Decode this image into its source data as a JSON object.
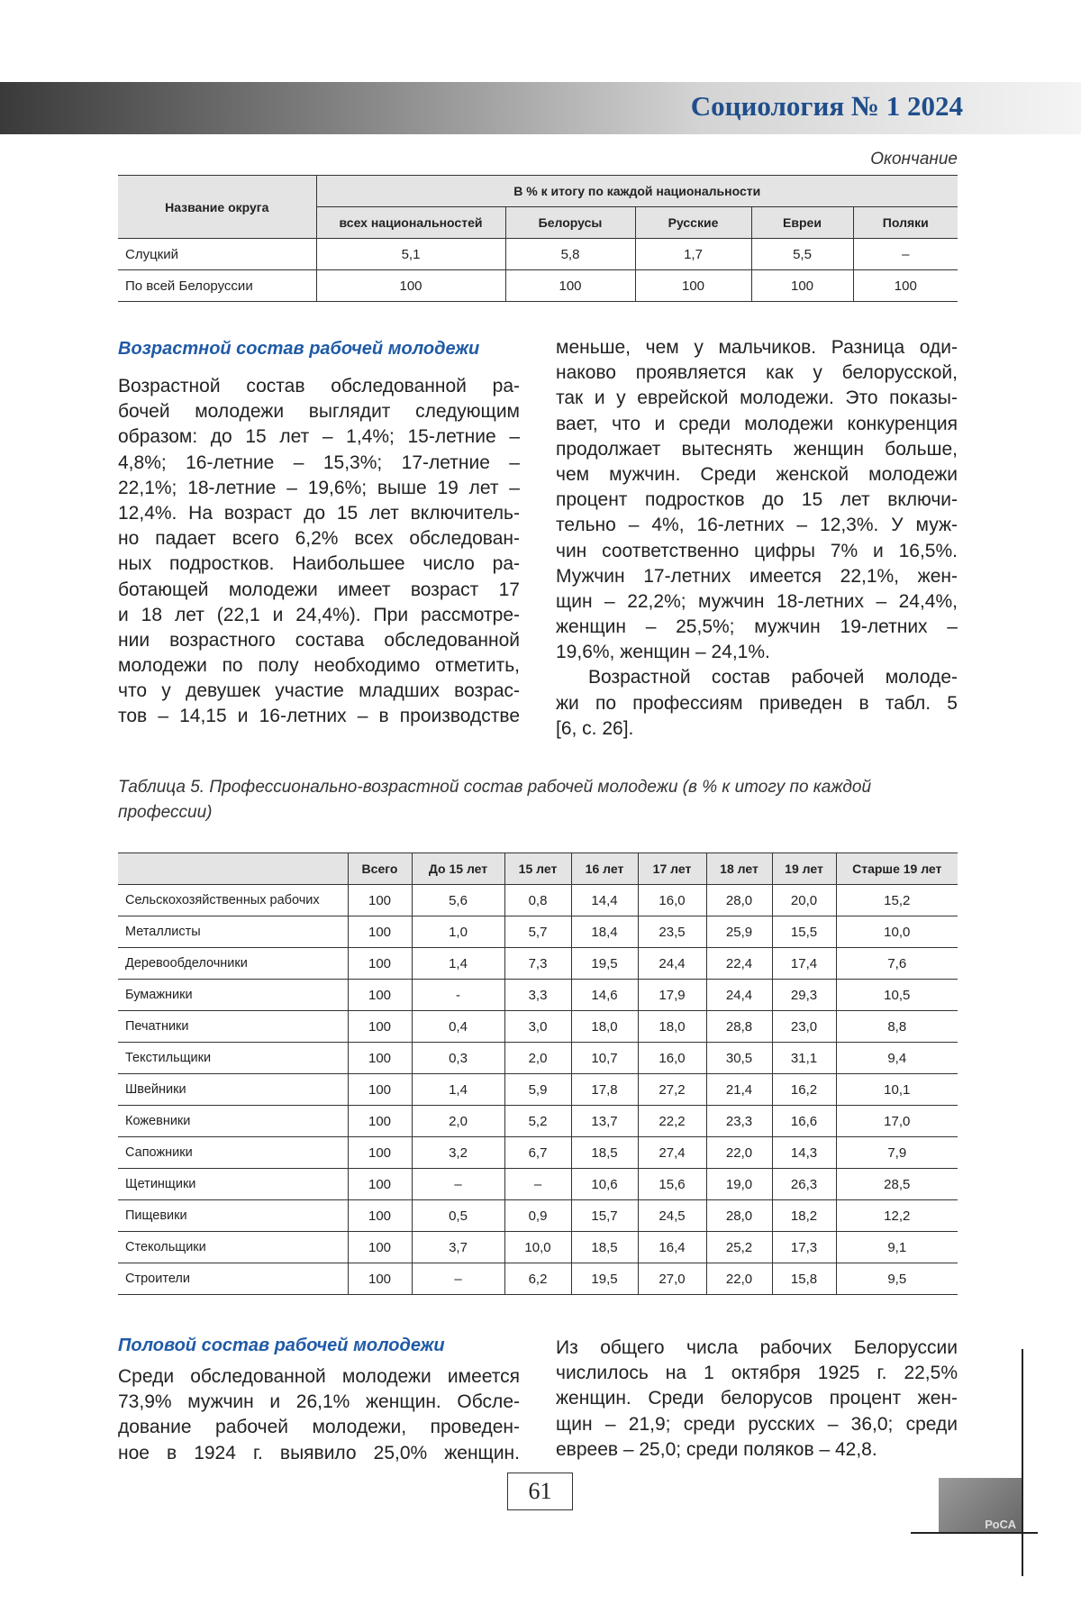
{
  "header": {
    "title": "Социология № 1 2024"
  },
  "table1": {
    "note": "Окончание",
    "head": {
      "name": "Название округа",
      "group": "В % к итогу по каждой национальности",
      "cols": [
        "всех национальностей",
        "Белорусы",
        "Русские",
        "Евреи",
        "Поляки"
      ]
    },
    "rows": [
      [
        "Слуцкий",
        "5,1",
        "5,8",
        "1,7",
        "5,5",
        "–"
      ],
      [
        "По всей Белоруссии",
        "100",
        "100",
        "100",
        "100",
        "100"
      ]
    ]
  },
  "section1": {
    "heading": "Возрастной состав рабочей молодежи",
    "left": [
      [
        "Возрастной состав обследованной ра-",
        "бочей молодежи выглядит следующим",
        "образом: до 15 лет – 1,4%; 15-летние –",
        "4,8%; 16-летние – 15,3%; 17-летние –",
        "22,1%; 18-летние – 19,6%; выше 19 лет –",
        "12,4%. На возраст до 15 лет включитель-",
        "но падает всего 6,2% всех обследован-",
        "ных подростков. Наибольшее число ра-",
        "ботающей молодежи имеет возраст 17",
        "и 18 лет (22,1 и 24,4%). При рассмотре-",
        "нии возрастного состава обследованной",
        "молодежи по полу необходимо отметить,",
        "что у девушек участие младших возрас-",
        "тов – 14,15 и 16-летних – в производстве"
      ]
    ],
    "right": [
      [
        "меньше, чем у мальчиков. Разница оди-",
        "наково проявляется как у белорусской,",
        "так и у еврейской молодежи. Это показы-",
        "вает, что и среди молодежи конкуренция",
        "продолжает вытеснять женщин больше,",
        "чем мужчин. Среди женской молодежи",
        "процент подростков до 15 лет включи-",
        "тельно – 4%, 16-летних – 12,3%. У муж-",
        "чин соответственно цифры 7% и 16,5%.",
        "Мужчин 17-летних имеется 22,1%, жен-",
        "щин – 22,2%; мужчин 18-летних – 24,4%,",
        "женщин – 25,5%; мужчин 19-летних –",
        "19,6%, женщин – 24,1%."
      ],
      [
        "Возрастной состав рабочей молоде-",
        "жи по профессиям приведен в табл. 5",
        "[6, с. 26]."
      ]
    ]
  },
  "table5": {
    "caption": "Таблица 5. Профессионально-возрастной состав рабочей молодежи (в % к итогу по каждой профессии)",
    "head": [
      "Всего",
      "До 15 лет",
      "15 лет",
      "16 лет",
      "17 лет",
      "18 лет",
      "19 лет",
      "Старше 19 лет"
    ],
    "rows": [
      [
        "Сельскохозяйственных рабочих",
        "100",
        "5,6",
        "0,8",
        "14,4",
        "16,0",
        "28,0",
        "20,0",
        "15,2"
      ],
      [
        "Металлисты",
        "100",
        "1,0",
        "5,7",
        "18,4",
        "23,5",
        "25,9",
        "15,5",
        "10,0"
      ],
      [
        "Деревообделочники",
        "100",
        "1,4",
        "7,3",
        "19,5",
        "24,4",
        "22,4",
        "17,4",
        "7,6"
      ],
      [
        "Бумажники",
        "100",
        "-",
        "3,3",
        "14,6",
        "17,9",
        "24,4",
        "29,3",
        "10,5"
      ],
      [
        "Печатники",
        "100",
        "0,4",
        "3,0",
        "18,0",
        "18,0",
        "28,8",
        "23,0",
        "8,8"
      ],
      [
        "Текстильщики",
        "100",
        "0,3",
        "2,0",
        "10,7",
        "16,0",
        "30,5",
        "31,1",
        "9,4"
      ],
      [
        "Швейники",
        "100",
        "1,4",
        "5,9",
        "17,8",
        "27,2",
        "21,4",
        "16,2",
        "10,1"
      ],
      [
        "Кожевники",
        "100",
        "2,0",
        "5,2",
        "13,7",
        "22,2",
        "23,3",
        "16,6",
        "17,0"
      ],
      [
        "Сапожники",
        "100",
        "3,2",
        "6,7",
        "18,5",
        "27,4",
        "22,0",
        "14,3",
        "7,9"
      ],
      [
        "Щетинщики",
        "100",
        "–",
        "–",
        "10,6",
        "15,6",
        "19,0",
        "26,3",
        "28,5"
      ],
      [
        "Пищевики",
        "100",
        "0,5",
        "0,9",
        "15,7",
        "24,5",
        "28,0",
        "18,2",
        "12,2"
      ],
      [
        "Стекольщики",
        "100",
        "3,7",
        "10,0",
        "18,5",
        "16,4",
        "25,2",
        "17,3",
        "9,1"
      ],
      [
        "Строители",
        "100",
        "–",
        "6,2",
        "19,5",
        "27,0",
        "22,0",
        "15,8",
        "9,5"
      ]
    ]
  },
  "section2": {
    "heading": "Половой состав рабочей молодежи",
    "left": [
      [
        "Среди обследованной молодежи имеется",
        "73,9% мужчин и 26,1% женщин. Обсле-",
        "дование рабочей молодежи, проведен-",
        "ное в 1924 г. выявило 25,0% женщин."
      ]
    ],
    "right": [
      [
        "Из общего числа рабочих Белоруссии",
        "числилось на 1 октября 1925 г. 22,5%",
        "женщин. Среди белорусов процент жен-",
        "щин – 21,9; среди русских – 36,0; среди",
        "евреев – 25,0; среди поляков – 42,8."
      ]
    ]
  },
  "footer": {
    "page": "61",
    "logo": "РоСА"
  }
}
